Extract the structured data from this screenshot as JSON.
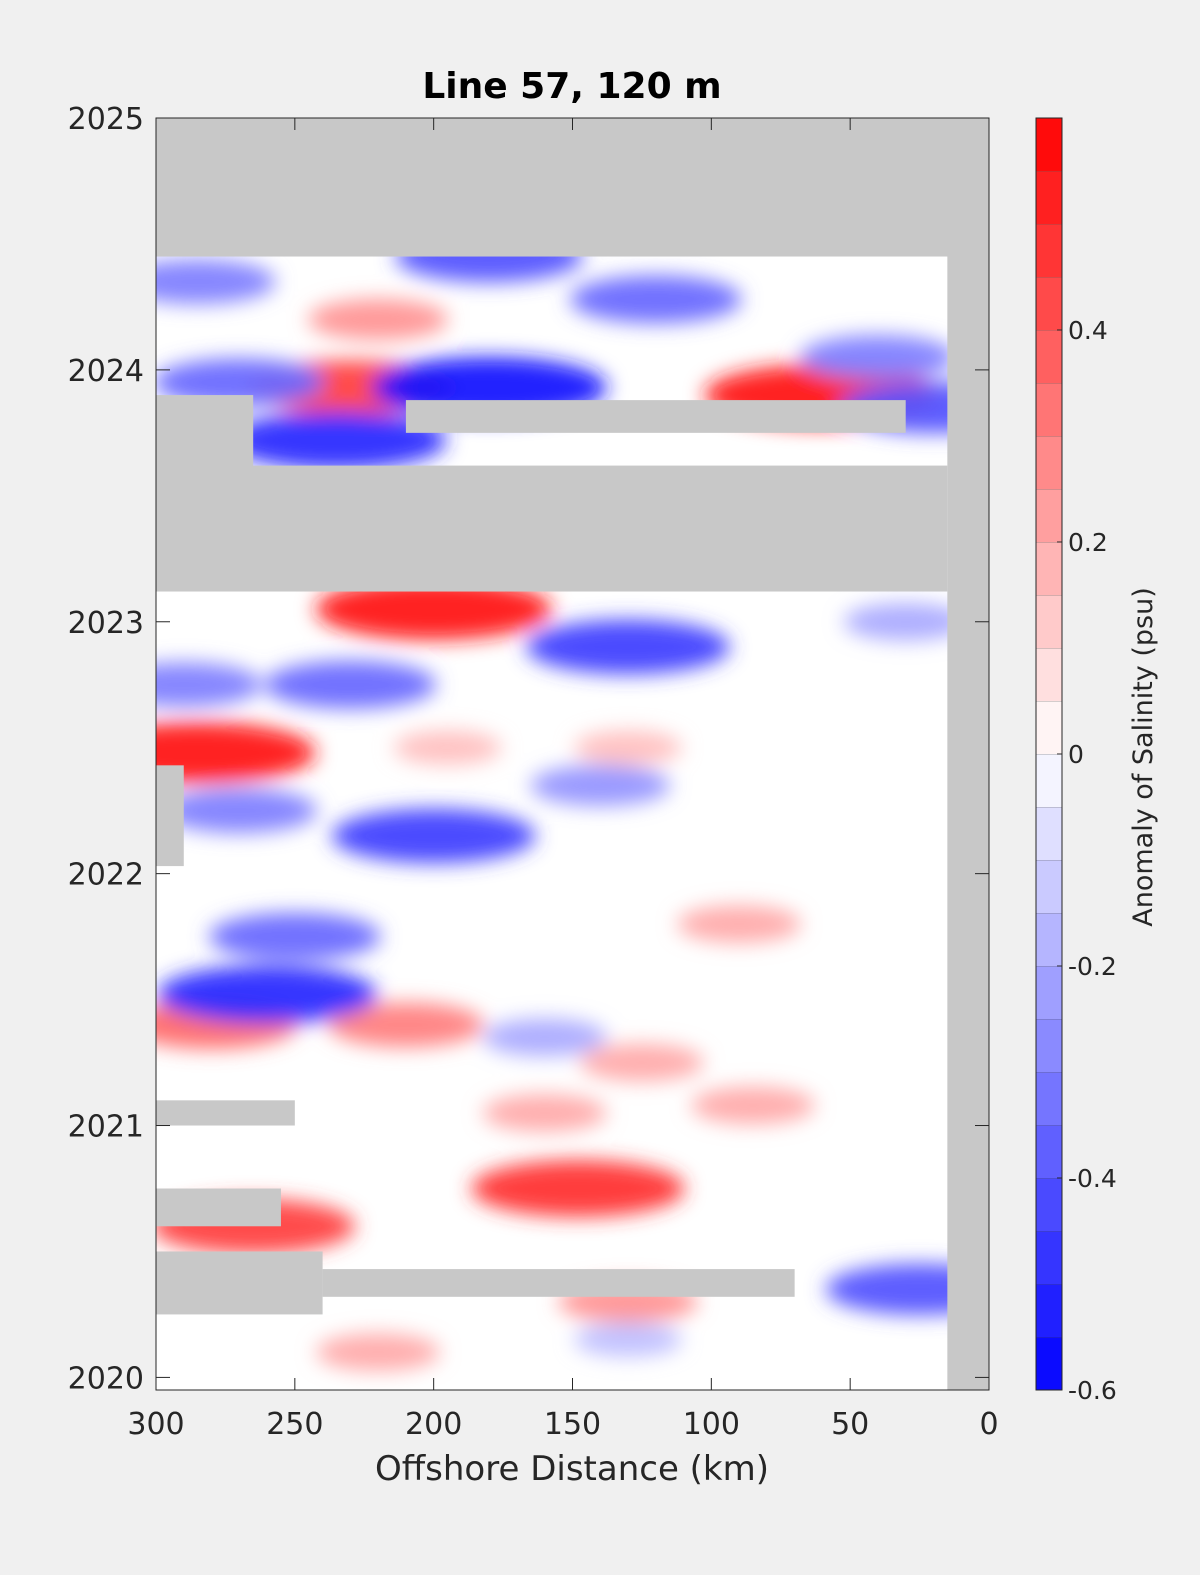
{
  "chart_data": {
    "type": "heatmap",
    "subtype": "filled-contour (offshore distance vs time)",
    "title": "Line 57, 120 m",
    "xlabel": "Offshore Distance (km)",
    "ylabel": "",
    "xlim": [
      300,
      0
    ],
    "x_reversed": true,
    "ylim": [
      2019.95,
      2025
    ],
    "xticks": [
      300,
      250,
      200,
      150,
      100,
      50,
      0
    ],
    "xtick_labels": [
      "300",
      "250",
      "200",
      "150",
      "100",
      "50",
      "0"
    ],
    "yticks": [
      2020,
      2021,
      2022,
      2023,
      2024,
      2025
    ],
    "ytick_labels": [
      "2020",
      "2021",
      "2022",
      "2023",
      "2024",
      "2025"
    ],
    "colorbar": {
      "label": "Anomaly of Salinity (psu)",
      "range": [
        -0.6,
        0.6
      ],
      "levels": [
        -0.6,
        -0.55,
        -0.5,
        -0.45,
        -0.4,
        -0.35,
        -0.3,
        -0.25,
        -0.2,
        -0.15,
        -0.1,
        -0.05,
        0,
        0.05,
        0.1,
        0.15,
        0.2,
        0.25,
        0.3,
        0.35,
        0.4,
        0.45,
        0.5,
        0.55,
        0.6
      ],
      "ticks": [
        -0.6,
        -0.4,
        -0.2,
        0,
        0.2,
        0.4
      ],
      "tick_labels": [
        "-0.6",
        "-0.4",
        "-0.2",
        "0",
        "0.2",
        "0.4"
      ],
      "colormap": "blue-white-red (diverging)"
    },
    "missing_color": "#c8c8c8",
    "missing_regions": [
      {
        "x": [
          300,
          0
        ],
        "y": [
          2024.45,
          2025
        ]
      },
      {
        "x": [
          15,
          0
        ],
        "y": [
          2019.95,
          2025
        ]
      },
      {
        "x": [
          300,
          15
        ],
        "y": [
          2023.12,
          2023.62
        ]
      },
      {
        "x": [
          300,
          265
        ],
        "y": [
          2023.6,
          2023.9
        ]
      },
      {
        "x": [
          210,
          30
        ],
        "y": [
          2023.75,
          2023.88
        ]
      },
      {
        "x": [
          300,
          240
        ],
        "y": [
          2020.25,
          2020.5
        ]
      },
      {
        "x": [
          240,
          70
        ],
        "y": [
          2020.32,
          2020.43
        ]
      },
      {
        "x": [
          300,
          250
        ],
        "y": [
          2021.0,
          2021.1
        ]
      },
      {
        "x": [
          300,
          255
        ],
        "y": [
          2020.6,
          2020.75
        ]
      },
      {
        "x": [
          300,
          290
        ],
        "y": [
          2022.03,
          2022.43
        ]
      }
    ],
    "anomaly_features": [
      {
        "x": 285,
        "y": 2022.48,
        "value": 0.55
      },
      {
        "x": 200,
        "y": 2023.05,
        "value": 0.55
      },
      {
        "x": 60,
        "y": 2023.9,
        "value": 0.55
      },
      {
        "x": 148,
        "y": 2020.75,
        "value": 0.48
      },
      {
        "x": 265,
        "y": 2020.6,
        "value": 0.45
      },
      {
        "x": 230,
        "y": 2023.93,
        "value": 0.45
      },
      {
        "x": 280,
        "y": 2021.4,
        "value": 0.35
      },
      {
        "x": 210,
        "y": 2021.4,
        "value": 0.3
      },
      {
        "x": 220,
        "y": 2024.2,
        "value": 0.25
      },
      {
        "x": 125,
        "y": 2021.25,
        "value": 0.2
      },
      {
        "x": 90,
        "y": 2021.8,
        "value": 0.2
      },
      {
        "x": 160,
        "y": 2021.05,
        "value": 0.2
      },
      {
        "x": 85,
        "y": 2021.08,
        "value": 0.2
      },
      {
        "x": 220,
        "y": 2020.1,
        "value": 0.2
      },
      {
        "x": 130,
        "y": 2020.3,
        "value": 0.25
      },
      {
        "x": 195,
        "y": 2022.5,
        "value": 0.15
      },
      {
        "x": 130,
        "y": 2022.5,
        "value": 0.15
      },
      {
        "x": 180,
        "y": 2023.93,
        "value": -0.55
      },
      {
        "x": 235,
        "y": 2023.72,
        "value": -0.5
      },
      {
        "x": 180,
        "y": 2024.45,
        "value": -0.4
      },
      {
        "x": 130,
        "y": 2022.9,
        "value": -0.45
      },
      {
        "x": 260,
        "y": 2021.52,
        "value": -0.5
      },
      {
        "x": 200,
        "y": 2022.15,
        "value": -0.45
      },
      {
        "x": 270,
        "y": 2022.25,
        "value": -0.3
      },
      {
        "x": 250,
        "y": 2021.75,
        "value": -0.35
      },
      {
        "x": 120,
        "y": 2024.28,
        "value": -0.35
      },
      {
        "x": 270,
        "y": 2023.95,
        "value": -0.35
      },
      {
        "x": 40,
        "y": 2024.05,
        "value": -0.3
      },
      {
        "x": 20,
        "y": 2023.85,
        "value": -0.4
      },
      {
        "x": 25,
        "y": 2020.35,
        "value": -0.4
      },
      {
        "x": 290,
        "y": 2022.75,
        "value": -0.3
      },
      {
        "x": 230,
        "y": 2022.75,
        "value": -0.35
      },
      {
        "x": 285,
        "y": 2024.35,
        "value": -0.3
      },
      {
        "x": 140,
        "y": 2022.35,
        "value": -0.25
      },
      {
        "x": 160,
        "y": 2021.35,
        "value": -0.2
      },
      {
        "x": 30,
        "y": 2023.0,
        "value": -0.2
      },
      {
        "x": 130,
        "y": 2020.15,
        "value": -0.15
      }
    ]
  },
  "colors": {
    "background": "#f0f0f0",
    "plot_frame": "#262626",
    "missing": "#c8c8c8",
    "positive": "#ff0000",
    "neutral": "#ffffff",
    "negative": "#0000ff"
  }
}
